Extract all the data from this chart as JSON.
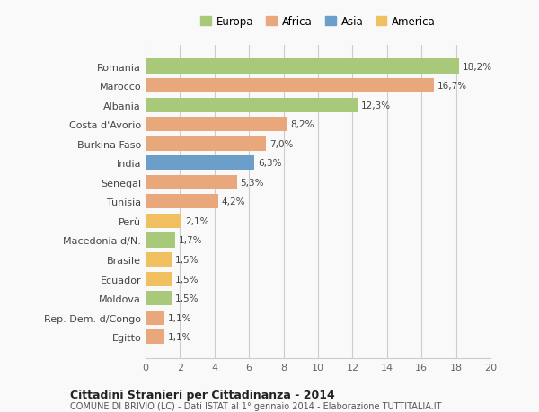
{
  "categories": [
    "Romania",
    "Marocco",
    "Albania",
    "Costa d'Avorio",
    "Burkina Faso",
    "India",
    "Senegal",
    "Tunisia",
    "Perù",
    "Macedonia d/N.",
    "Brasile",
    "Ecuador",
    "Moldova",
    "Rep. Dem. d/Congo",
    "Egitto"
  ],
  "values": [
    18.2,
    16.7,
    12.3,
    8.2,
    7.0,
    6.3,
    5.3,
    4.2,
    2.1,
    1.7,
    1.5,
    1.5,
    1.5,
    1.1,
    1.1
  ],
  "labels": [
    "18,2%",
    "16,7%",
    "12,3%",
    "8,2%",
    "7,0%",
    "6,3%",
    "5,3%",
    "4,2%",
    "2,1%",
    "1,7%",
    "1,5%",
    "1,5%",
    "1,5%",
    "1,1%",
    "1,1%"
  ],
  "colors": [
    "#a8c87a",
    "#e8a87c",
    "#a8c87a",
    "#e8a87c",
    "#e8a87c",
    "#6b9ec8",
    "#e8a87c",
    "#e8a87c",
    "#f0c060",
    "#a8c87a",
    "#f0c060",
    "#f0c060",
    "#a8c87a",
    "#e8a87c",
    "#e8a87c"
  ],
  "legend": [
    {
      "label": "Europa",
      "color": "#a8c87a"
    },
    {
      "label": "Africa",
      "color": "#e8a87c"
    },
    {
      "label": "Asia",
      "color": "#6b9ec8"
    },
    {
      "label": "America",
      "color": "#f0c060"
    }
  ],
  "xlim": [
    0,
    20
  ],
  "xticks": [
    0,
    2,
    4,
    6,
    8,
    10,
    12,
    14,
    16,
    18,
    20
  ],
  "title": "Cittadini Stranieri per Cittadinanza - 2014",
  "subtitle": "COMUNE DI BRIVIO (LC) - Dati ISTAT al 1° gennaio 2014 - Elaborazione TUTTITALIA.IT",
  "bg_color": "#f9f9f9",
  "grid_color": "#cccccc",
  "bar_height": 0.75
}
